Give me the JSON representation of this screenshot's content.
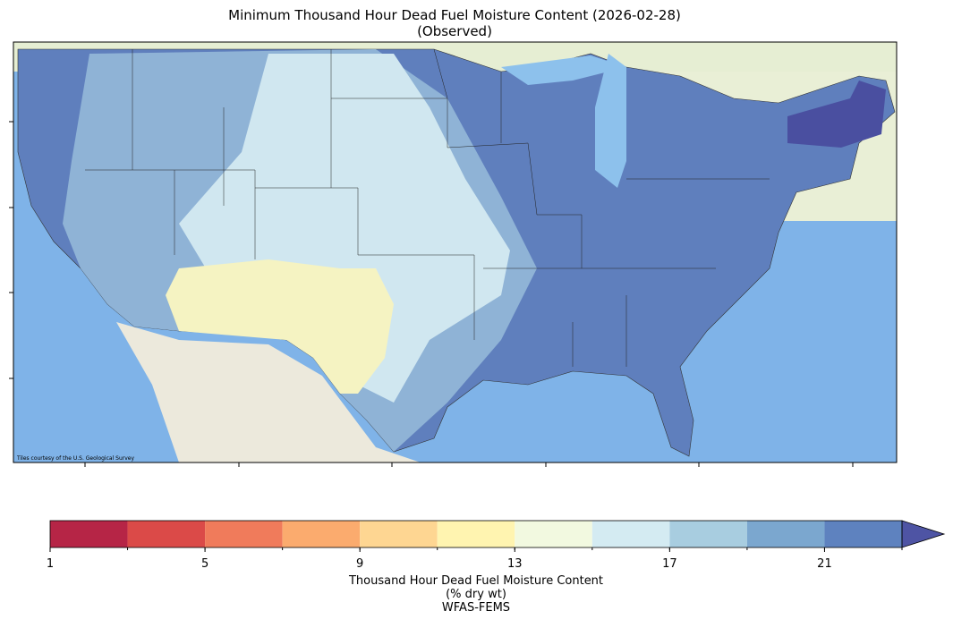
{
  "title": "Minimum Thousand Hour Dead Fuel Moisture Content (2026-02-28)",
  "subtitle": "(Observed)",
  "attribution": "Tiles courtesy of the U.S. Geological Survey",
  "colorbar": {
    "bins": [
      1,
      3,
      5,
      7,
      9,
      11,
      13,
      15,
      17,
      19,
      21,
      23
    ],
    "colors": [
      "#b62546",
      "#db4a48",
      "#f07b5b",
      "#fbab6e",
      "#fed692",
      "#fff4b0",
      "#f2f9e0",
      "#d4ebf2",
      "#a8cde0",
      "#7ba7cf",
      "#5e82bf"
    ],
    "over_color": "#4e54a4",
    "ticks": [
      1,
      5,
      9,
      13,
      17,
      21
    ],
    "label": [
      "Thousand Hour Dead Fuel Moisture Content",
      "(% dry wt)",
      "WFAS-FEMS"
    ]
  }
}
